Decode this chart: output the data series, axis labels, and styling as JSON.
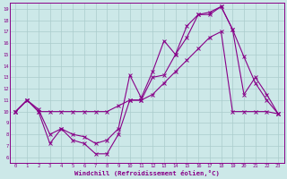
{
  "xlabel": "Windchill (Refroidissement éolien,°C)",
  "xlim": [
    -0.5,
    23.5
  ],
  "ylim": [
    5.5,
    19.5
  ],
  "xticks": [
    0,
    1,
    2,
    3,
    4,
    5,
    6,
    7,
    8,
    9,
    10,
    11,
    12,
    13,
    14,
    15,
    16,
    17,
    18,
    19,
    20,
    21,
    22,
    23
  ],
  "yticks": [
    6,
    7,
    8,
    9,
    10,
    11,
    12,
    13,
    14,
    15,
    16,
    17,
    18,
    19
  ],
  "bg_color": "#cce8e8",
  "line_color": "#880088",
  "grid_color": "#aacccc",
  "line1_x": [
    0,
    1,
    2,
    3,
    4,
    5,
    6,
    7,
    8,
    9,
    10,
    11,
    12,
    13,
    14,
    15,
    16,
    17,
    18,
    19,
    20,
    21,
    22,
    23
  ],
  "line1_y": [
    10.0,
    11.0,
    10.0,
    10.0,
    10.0,
    10.0,
    10.0,
    10.0,
    10.0,
    10.5,
    11.0,
    11.0,
    11.5,
    12.5,
    13.5,
    14.5,
    15.5,
    16.5,
    17.0,
    10.0,
    10.0,
    10.0,
    10.0,
    9.8
  ],
  "line2_x": [
    0,
    1,
    2,
    3,
    4,
    5,
    6,
    7,
    8,
    9,
    10,
    11,
    12,
    13,
    14,
    15,
    16,
    17,
    18,
    19,
    20,
    21,
    22,
    23
  ],
  "line2_y": [
    10.0,
    11.0,
    10.0,
    7.2,
    8.5,
    7.5,
    7.2,
    6.3,
    6.3,
    8.0,
    11.0,
    11.0,
    13.0,
    13.2,
    15.0,
    17.5,
    18.5,
    18.5,
    19.2,
    17.2,
    14.8,
    12.5,
    11.0,
    9.8
  ],
  "line3_x": [
    0,
    1,
    2,
    3,
    4,
    5,
    6,
    7,
    8,
    9,
    10,
    11,
    12,
    13,
    14,
    15,
    16,
    17,
    18,
    19,
    20,
    21,
    22,
    23
  ],
  "line3_y": [
    10.0,
    11.0,
    10.2,
    8.0,
    8.5,
    8.0,
    7.8,
    7.2,
    7.5,
    8.5,
    13.2,
    11.2,
    13.5,
    16.2,
    15.0,
    16.5,
    18.5,
    18.7,
    19.2,
    17.2,
    11.5,
    13.0,
    11.5,
    9.8
  ]
}
